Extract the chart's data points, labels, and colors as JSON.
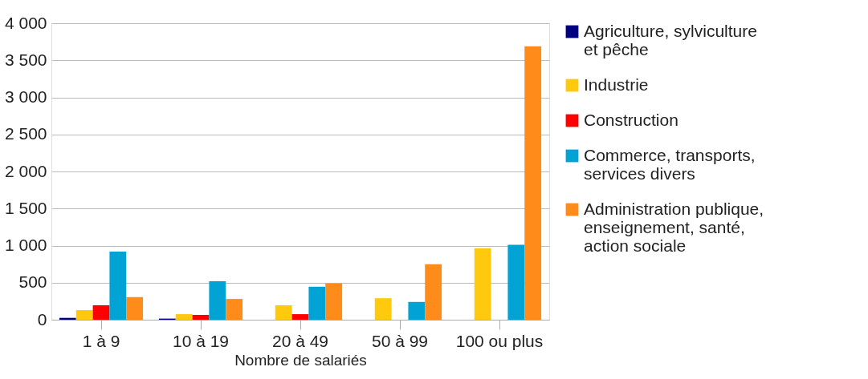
{
  "chart_data": {
    "type": "bar",
    "xlabel": "Nombre de salariés",
    "categories": [
      "1 à 9",
      "10 à 19",
      "20 à 49",
      "50 à 99",
      "100 ou plus"
    ],
    "series": [
      {
        "name": "Agriculture, sylviculture et pêche",
        "color": "#000080",
        "values": [
          25,
          15,
          0,
          0,
          0
        ]
      },
      {
        "name": "Industrie",
        "color": "#ffc90e",
        "values": [
          130,
          75,
          195,
          290,
          965
        ]
      },
      {
        "name": "Construction",
        "color": "#ff0000",
        "values": [
          195,
          65,
          75,
          0,
          0
        ]
      },
      {
        "name": "Commerce, transports, services divers",
        "color": "#00a3d4",
        "values": [
          920,
          520,
          445,
          240,
          1010
        ]
      },
      {
        "name": "Administration publique, enseignement, santé, action sociale",
        "color": "#ff8c1a",
        "values": [
          305,
          280,
          490,
          750,
          3690
        ]
      }
    ],
    "ylim": [
      0,
      4000
    ],
    "yticks": [
      {
        "value": 0,
        "label": "0"
      },
      {
        "value": 500,
        "label": "500"
      },
      {
        "value": 1000,
        "label": "1 000"
      },
      {
        "value": 1500,
        "label": "1 500"
      },
      {
        "value": 2000,
        "label": "2 000"
      },
      {
        "value": 2500,
        "label": "2 500"
      },
      {
        "value": 3000,
        "label": "3 000"
      },
      {
        "value": 3500,
        "label": "3 500"
      },
      {
        "value": 4000,
        "label": "4 000"
      }
    ],
    "grid": "y",
    "legend": "right"
  }
}
